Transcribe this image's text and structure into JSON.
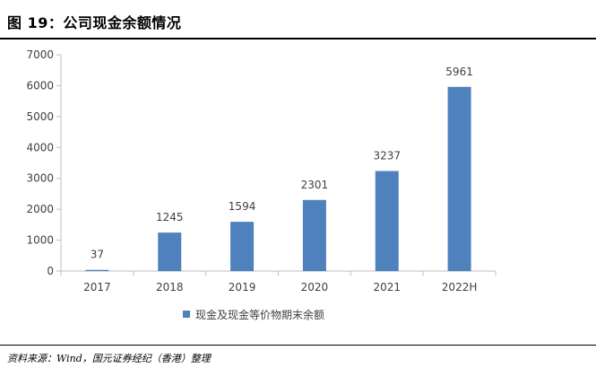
{
  "title": "图 19：公司现金余额情况",
  "source": "资料来源：Wind，国元证券经纪（香港）整理",
  "chart_data": {
    "type": "bar",
    "categories": [
      "2017",
      "2018",
      "2019",
      "2020",
      "2021",
      "2022H"
    ],
    "series": [
      {
        "name": "现金及现金等价物期末余额",
        "values": [
          37,
          1245,
          1594,
          2301,
          3237,
          5961
        ]
      }
    ],
    "data_labels": [
      "37",
      "1245",
      "1594",
      "2301",
      "3237",
      "5961"
    ],
    "ylim": [
      0,
      7000
    ],
    "yticks": [
      0,
      1000,
      2000,
      3000,
      4000,
      5000,
      6000,
      7000
    ],
    "xlabel": "",
    "ylabel": "",
    "grid": false,
    "legend_position": "bottom",
    "bar_color": "#4F81BD"
  }
}
